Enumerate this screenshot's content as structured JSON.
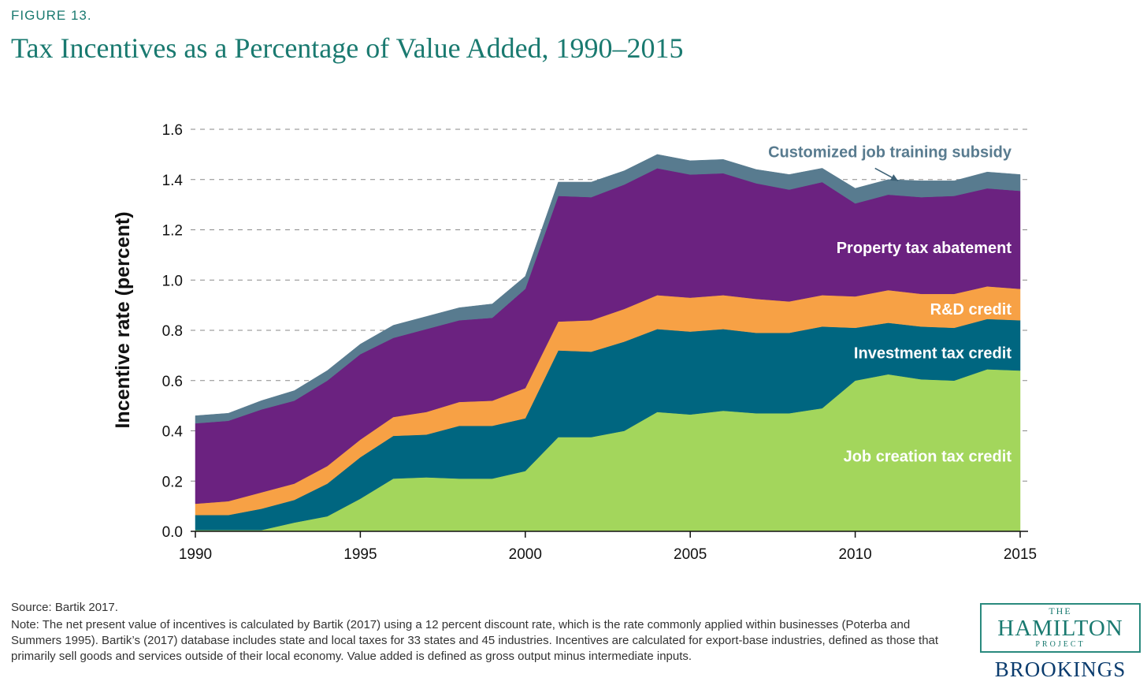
{
  "figure_label": "FIGURE 13.",
  "title": "Tax Incentives as a Percentage of Value Added, 1990–2015",
  "source": "Source: Bartik 2017.",
  "note": "Note: The net present value of incentives is calculated by Bartik (2017) using a 12 percent discount rate, which is the rate commonly applied within businesses (Poterba and Summers 1995). Bartik’s (2017) database includes state and local taxes for 33 states and 45 industries. Incentives are calculated for export-base industries, defined as those that primarily sell goods and services outside of their local economy. Value added is defined as gross output minus intermediate inputs.",
  "logo": {
    "the": "THE",
    "hamilton": "HAMILTON",
    "project": "PROJECT",
    "brookings": "BROOKINGS"
  },
  "chart_data": {
    "type": "area",
    "stacked": true,
    "x": [
      1990,
      1991,
      1992,
      1993,
      1994,
      1995,
      1996,
      1997,
      1998,
      1999,
      2000,
      2001,
      2002,
      2003,
      2004,
      2005,
      2006,
      2007,
      2008,
      2009,
      2010,
      2011,
      2012,
      2013,
      2014,
      2015
    ],
    "xticks": [
      1990,
      1995,
      2000,
      2005,
      2010,
      2015
    ],
    "xtick_labels": [
      "1990",
      "1995",
      "2000",
      "2005",
      "2010",
      "2015"
    ],
    "ylabel": "Incentive rate (percent)",
    "ylim": [
      0,
      1.6
    ],
    "yticks": [
      0.0,
      0.2,
      0.4,
      0.6,
      0.8,
      1.0,
      1.2,
      1.4,
      1.6
    ],
    "ytick_labels": [
      "0.0",
      "0.2",
      "0.4",
      "0.6",
      "0.8",
      "1.0",
      "1.2",
      "1.4",
      "1.6"
    ],
    "grid": "horizontal-dashed",
    "series": [
      {
        "name": "Job creation tax credit",
        "color": "#a3d65c",
        "values": [
          0.005,
          0.005,
          0.005,
          0.035,
          0.06,
          0.13,
          0.21,
          0.215,
          0.21,
          0.21,
          0.24,
          0.375,
          0.375,
          0.4,
          0.475,
          0.465,
          0.48,
          0.47,
          0.47,
          0.49,
          0.6,
          0.625,
          0.605,
          0.6,
          0.645,
          0.64
        ]
      },
      {
        "name": "Investment tax credit",
        "color": "#006680",
        "values": [
          0.06,
          0.06,
          0.085,
          0.09,
          0.13,
          0.165,
          0.17,
          0.17,
          0.21,
          0.21,
          0.21,
          0.345,
          0.34,
          0.355,
          0.33,
          0.33,
          0.325,
          0.32,
          0.32,
          0.325,
          0.21,
          0.205,
          0.21,
          0.21,
          0.2,
          0.2
        ]
      },
      {
        "name": "R&D credit",
        "color": "#f7a145",
        "values": [
          0.045,
          0.055,
          0.065,
          0.065,
          0.07,
          0.07,
          0.075,
          0.09,
          0.095,
          0.1,
          0.12,
          0.115,
          0.125,
          0.13,
          0.135,
          0.135,
          0.135,
          0.135,
          0.125,
          0.125,
          0.125,
          0.13,
          0.13,
          0.135,
          0.13,
          0.125
        ]
      },
      {
        "name": "Property tax abatement",
        "color": "#6b2280",
        "values": [
          0.32,
          0.32,
          0.33,
          0.33,
          0.34,
          0.34,
          0.315,
          0.33,
          0.325,
          0.33,
          0.395,
          0.5,
          0.49,
          0.495,
          0.505,
          0.49,
          0.485,
          0.46,
          0.445,
          0.45,
          0.37,
          0.38,
          0.385,
          0.39,
          0.39,
          0.39
        ]
      },
      {
        "name": "Customized job training subsidy",
        "color": "#587b8f",
        "values": [
          0.03,
          0.03,
          0.035,
          0.04,
          0.04,
          0.04,
          0.05,
          0.05,
          0.05,
          0.055,
          0.05,
          0.055,
          0.06,
          0.055,
          0.055,
          0.055,
          0.055,
          0.055,
          0.06,
          0.055,
          0.06,
          0.06,
          0.065,
          0.06,
          0.065,
          0.065
        ]
      }
    ],
    "series_labels": [
      {
        "text": "Job creation tax credit",
        "color": "#ffffff",
        "x": 2015,
        "y": 0.3
      },
      {
        "text": "Investment tax credit",
        "color": "#ffffff",
        "x": 2015,
        "y": 0.71
      },
      {
        "text": "R&D credit",
        "color": "#ffffff",
        "x": 2015,
        "y": 0.885
      },
      {
        "text": "Property tax abatement",
        "color": "#ffffff",
        "x": 2015,
        "y": 1.13
      },
      {
        "text": "Customized job training subsidy",
        "color": "#587b8f",
        "x": 2015,
        "y": 1.51
      }
    ],
    "annotation_arrow": {
      "from": [
        2010.6,
        1.445
      ],
      "to": [
        2011.3,
        1.395
      ]
    }
  }
}
